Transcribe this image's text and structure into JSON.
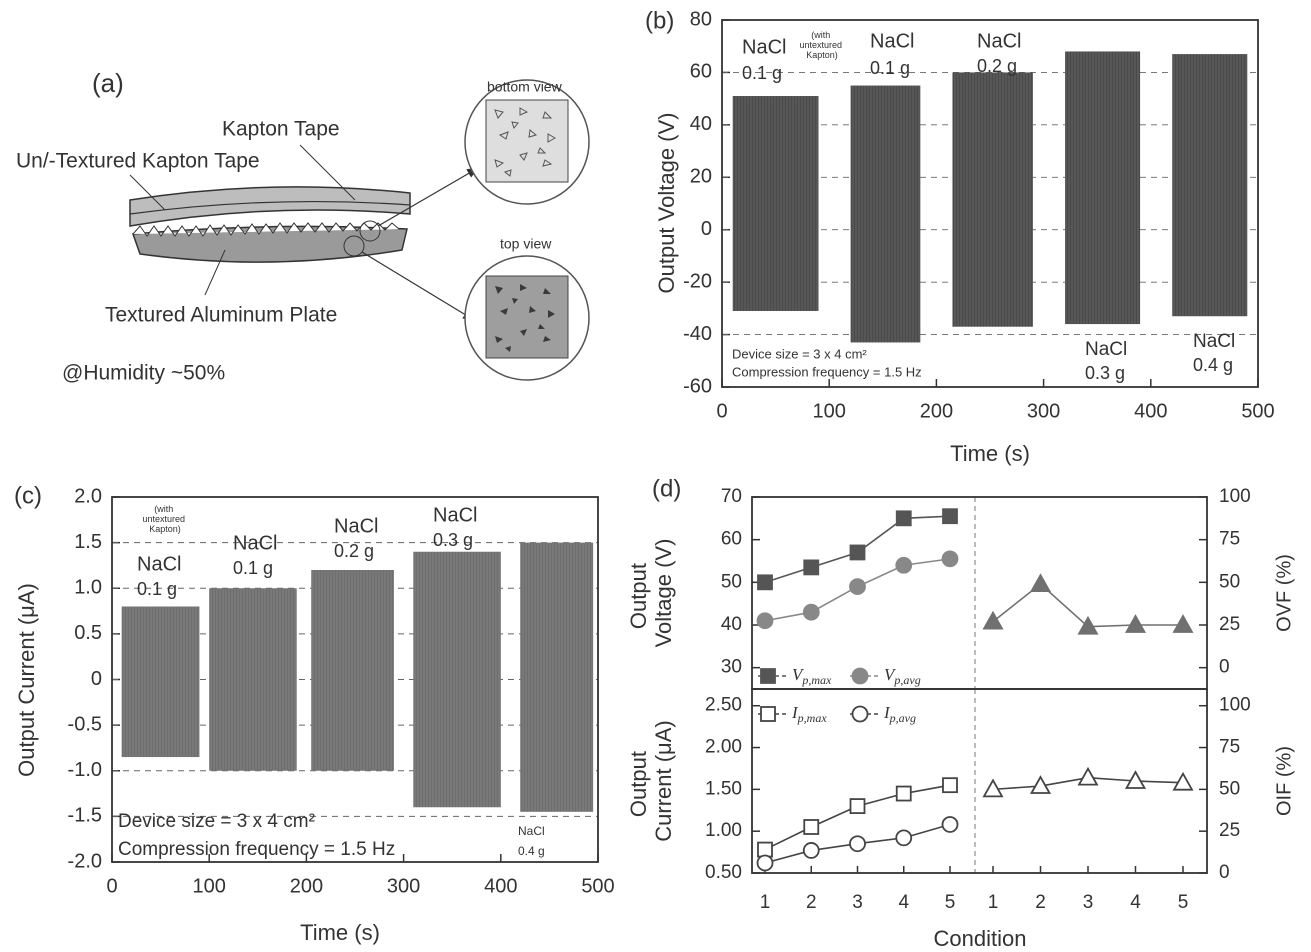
{
  "diagram": {
    "label": "(a)",
    "top_tape": "Kapton Tape",
    "textured_tape": "Un/-Textured Kapton Tape",
    "plate": "Textured Aluminum Plate",
    "bottom_view": "bottom view",
    "top_view": "top view",
    "humidity": "@Humidity ~50%"
  },
  "chart_data": [
    {
      "type": "burst",
      "label": "(b)",
      "x_label": "Time (s)",
      "y_label": "Output Voltage (V)",
      "color": "#4a4a4a",
      "grid": "dashed",
      "xlim": [
        0,
        500
      ],
      "xticks": [
        0,
        100,
        200,
        300,
        400,
        500
      ],
      "ylim": [
        -60,
        80
      ],
      "yticks": [
        -60,
        -40,
        -20,
        0,
        20,
        40,
        60,
        80
      ],
      "bursts": {
        "start": [
          10,
          120,
          215,
          320,
          420
        ],
        "end": [
          90,
          185,
          290,
          390,
          490
        ],
        "max": [
          51,
          55,
          60,
          68,
          67
        ],
        "min": [
          -31,
          -43,
          -37,
          -36,
          -33
        ]
      },
      "annotations": [
        "NaCl",
        "(with untextured Kapton)",
        "0.1 g",
        "NaCl",
        "0.1 g",
        "NaCl",
        "0.2 g",
        "NaCl",
        "0.3 g",
        "NaCl",
        "0.4 g",
        "Device size = 3 x 4 cm²",
        "Compression frequency = 1.5 Hz"
      ]
    },
    {
      "type": "burst",
      "label": "(c)",
      "x_label": "Time (s)",
      "y_label": "Output Current (μA)",
      "color": "#6e6e6e",
      "grid": "dashed",
      "xlim": [
        0,
        500
      ],
      "xticks": [
        0,
        100,
        200,
        300,
        400,
        500
      ],
      "ylim": [
        -2,
        2
      ],
      "yticks": [
        {
          "value": -2,
          "label": "-2.0"
        },
        -1.5,
        {
          "value": -1,
          "label": "-1.0"
        },
        -0.5,
        0,
        0.5,
        {
          "value": 1,
          "label": "1.0"
        },
        1.5,
        {
          "value": 2,
          "label": "2.0"
        }
      ],
      "bursts": {
        "start": [
          10,
          100,
          205,
          310,
          420
        ],
        "end": [
          90,
          190,
          290,
          400,
          495
        ],
        "max": [
          0.8,
          1.0,
          1.2,
          1.4,
          1.5
        ],
        "min": [
          -0.85,
          -1.0,
          -1.0,
          -1.4,
          -1.45
        ]
      },
      "annotations": [
        "(with untextured Kapton)",
        "NaCl",
        "0.1 g",
        "NaCl",
        "0.1 g",
        "NaCl",
        "0.2 g",
        "NaCl",
        "0.3 g",
        "Device size = 3 x 4 cm²",
        "Compression frequency = 1.5 Hz",
        "NaCl",
        "0.4 g"
      ]
    },
    {
      "type": "line",
      "label": "(d)",
      "y_label": "Output Voltage (V)",
      "y2_label": "OVF (%)",
      "legend": "lower left",
      "ylim": [
        25,
        70
      ],
      "yticks": [
        30,
        40,
        50,
        60,
        70
      ],
      "y2lim": [
        -12.5,
        100
      ],
      "y2ticks": [
        0,
        25,
        50,
        75,
        100
      ],
      "series": [
        {
          "name": "Vp,max",
          "color": "#555555",
          "marker": "square",
          "filled": true,
          "values": [
            50,
            53.5,
            57,
            65,
            65.5,
            null,
            null,
            null,
            null,
            null
          ]
        },
        {
          "name": "Vp,avg",
          "color": "#888888",
          "marker": "circle",
          "filled": true,
          "values": [
            41,
            43,
            49,
            54,
            55.5,
            null,
            null,
            null,
            null,
            null
          ]
        },
        {
          "color": "#707070",
          "marker": "triangle",
          "filled": true,
          "axis": "y2",
          "values": [
            null,
            null,
            null,
            null,
            null,
            27,
            49,
            24,
            25,
            25
          ]
        }
      ]
    },
    {
      "type": "line",
      "x_label": "Condition",
      "y_label": "Output Current (μA)",
      "y2_label": "OIF (%)",
      "legend": "upper left",
      "categories": [
        "1",
        "2",
        "3",
        "4",
        "5",
        "1",
        "2",
        "3",
        "4",
        "5"
      ],
      "ylim": [
        0.5,
        2.7
      ],
      "yticks": [
        {
          "value": 0.5,
          "label": "0.50"
        },
        {
          "value": 1,
          "label": "1.00"
        },
        {
          "value": 1.5,
          "label": "1.50"
        },
        {
          "value": 2,
          "label": "2.00"
        },
        {
          "value": 2.5,
          "label": "2.50"
        }
      ],
      "y2lim": [
        0,
        110
      ],
      "y2ticks": [
        0,
        25,
        50,
        75,
        100
      ],
      "series": [
        {
          "name": "Ip,max",
          "color": "#444444",
          "marker": "square",
          "filled": false,
          "values": [
            0.78,
            1.05,
            1.3,
            1.45,
            1.55,
            null,
            null,
            null,
            null,
            null
          ]
        },
        {
          "name": "Ip,avg",
          "color": "#444444",
          "marker": "circle",
          "filled": false,
          "values": [
            0.62,
            0.77,
            0.85,
            0.92,
            1.08,
            null,
            null,
            null,
            null,
            null
          ]
        },
        {
          "color": "#444444",
          "marker": "triangle",
          "filled": false,
          "axis": "y2",
          "values": [
            null,
            null,
            null,
            null,
            null,
            50,
            52,
            57,
            55,
            54
          ]
        }
      ]
    }
  ]
}
